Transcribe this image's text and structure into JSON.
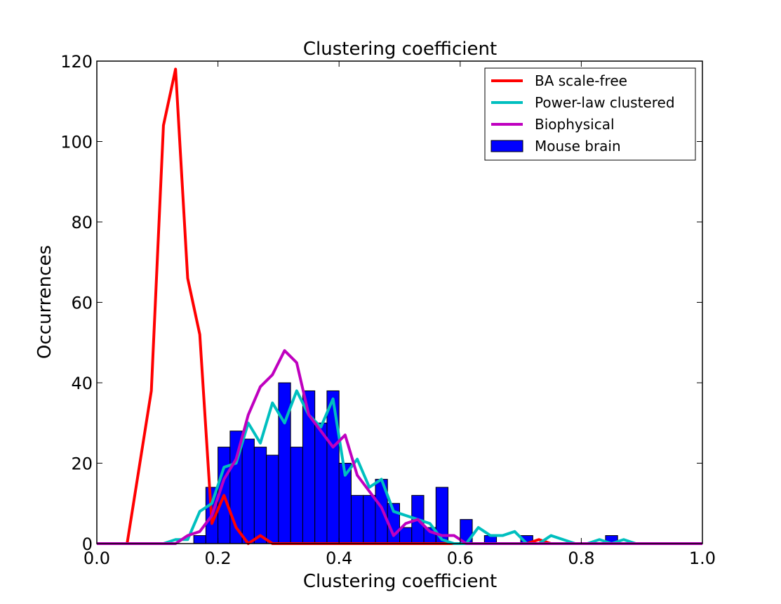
{
  "chart_data": {
    "type": "bar",
    "title": "Clustering coefficient",
    "xlabel": "Clustering coefficient",
    "ylabel": "Occurrences",
    "xlim": [
      0.0,
      1.0
    ],
    "ylim": [
      0,
      120
    ],
    "xticks": [
      "0.0",
      "0.2",
      "0.4",
      "0.6",
      "0.8",
      "1.0"
    ],
    "yticks": [
      "0",
      "20",
      "40",
      "60",
      "80",
      "100",
      "120"
    ],
    "grid": false,
    "legend_position": "top-right",
    "histogram": {
      "name": "Mouse brain",
      "color": "#0000ff",
      "bin_width": 0.02,
      "bins": [
        {
          "x": 0.16,
          "value": 2
        },
        {
          "x": 0.18,
          "value": 14
        },
        {
          "x": 0.2,
          "value": 24
        },
        {
          "x": 0.22,
          "value": 28
        },
        {
          "x": 0.24,
          "value": 26
        },
        {
          "x": 0.26,
          "value": 24
        },
        {
          "x": 0.28,
          "value": 22
        },
        {
          "x": 0.3,
          "value": 40
        },
        {
          "x": 0.32,
          "value": 24
        },
        {
          "x": 0.34,
          "value": 38
        },
        {
          "x": 0.36,
          "value": 30
        },
        {
          "x": 0.38,
          "value": 38
        },
        {
          "x": 0.4,
          "value": 20
        },
        {
          "x": 0.42,
          "value": 12
        },
        {
          "x": 0.44,
          "value": 12
        },
        {
          "x": 0.46,
          "value": 16
        },
        {
          "x": 0.48,
          "value": 10
        },
        {
          "x": 0.5,
          "value": 4
        },
        {
          "x": 0.52,
          "value": 12
        },
        {
          "x": 0.54,
          "value": 4
        },
        {
          "x": 0.56,
          "value": 14
        },
        {
          "x": 0.6,
          "value": 6
        },
        {
          "x": 0.64,
          "value": 2
        },
        {
          "x": 0.7,
          "value": 2
        },
        {
          "x": 0.84,
          "value": 2
        }
      ]
    },
    "series": [
      {
        "name": "BA scale-free",
        "color": "#ff0000",
        "x": [
          0.0,
          0.05,
          0.07,
          0.09,
          0.11,
          0.13,
          0.15,
          0.17,
          0.19,
          0.21,
          0.23,
          0.25,
          0.27,
          0.29,
          0.31,
          0.71,
          0.73,
          0.75,
          1.0
        ],
        "y": [
          0,
          0,
          19,
          38,
          104,
          118,
          66,
          52,
          5,
          12,
          4,
          0,
          2,
          0,
          0,
          0,
          1,
          0,
          0
        ]
      },
      {
        "name": "Power-law clustered",
        "color": "#00bfbf",
        "x": [
          0.0,
          0.11,
          0.13,
          0.15,
          0.17,
          0.19,
          0.21,
          0.23,
          0.25,
          0.27,
          0.29,
          0.31,
          0.33,
          0.35,
          0.37,
          0.39,
          0.41,
          0.43,
          0.45,
          0.47,
          0.49,
          0.51,
          0.53,
          0.55,
          0.57,
          0.59,
          0.61,
          0.63,
          0.65,
          0.67,
          0.69,
          0.71,
          0.73,
          0.75,
          0.77,
          0.79,
          0.81,
          0.83,
          0.85,
          0.87,
          0.89,
          0.91,
          0.93,
          1.0
        ],
        "y": [
          0,
          0,
          1,
          1,
          8,
          10,
          19,
          20,
          30,
          25,
          35,
          30,
          38,
          32,
          29,
          36,
          17,
          21,
          14,
          16,
          8,
          7,
          6,
          5,
          1,
          0,
          0,
          4,
          2,
          2,
          3,
          0,
          0,
          2,
          1,
          0,
          0,
          1,
          0,
          1,
          0,
          0,
          0,
          0
        ]
      },
      {
        "name": "Biophysical",
        "color": "#bf00bf",
        "x": [
          0.0,
          0.13,
          0.15,
          0.17,
          0.19,
          0.21,
          0.23,
          0.25,
          0.27,
          0.29,
          0.31,
          0.33,
          0.35,
          0.37,
          0.39,
          0.41,
          0.43,
          0.45,
          0.47,
          0.49,
          0.51,
          0.53,
          0.55,
          0.57,
          0.59,
          0.61,
          0.63,
          1.0
        ],
        "y": [
          0,
          0,
          2,
          3,
          7,
          16,
          21,
          32,
          39,
          42,
          48,
          45,
          32,
          28,
          24,
          27,
          17,
          13,
          9,
          2,
          5,
          6,
          3,
          2,
          2,
          0,
          0,
          0
        ]
      }
    ],
    "legend_order": [
      "BA scale-free",
      "Power-law clustered",
      "Biophysical",
      "Mouse brain"
    ]
  }
}
